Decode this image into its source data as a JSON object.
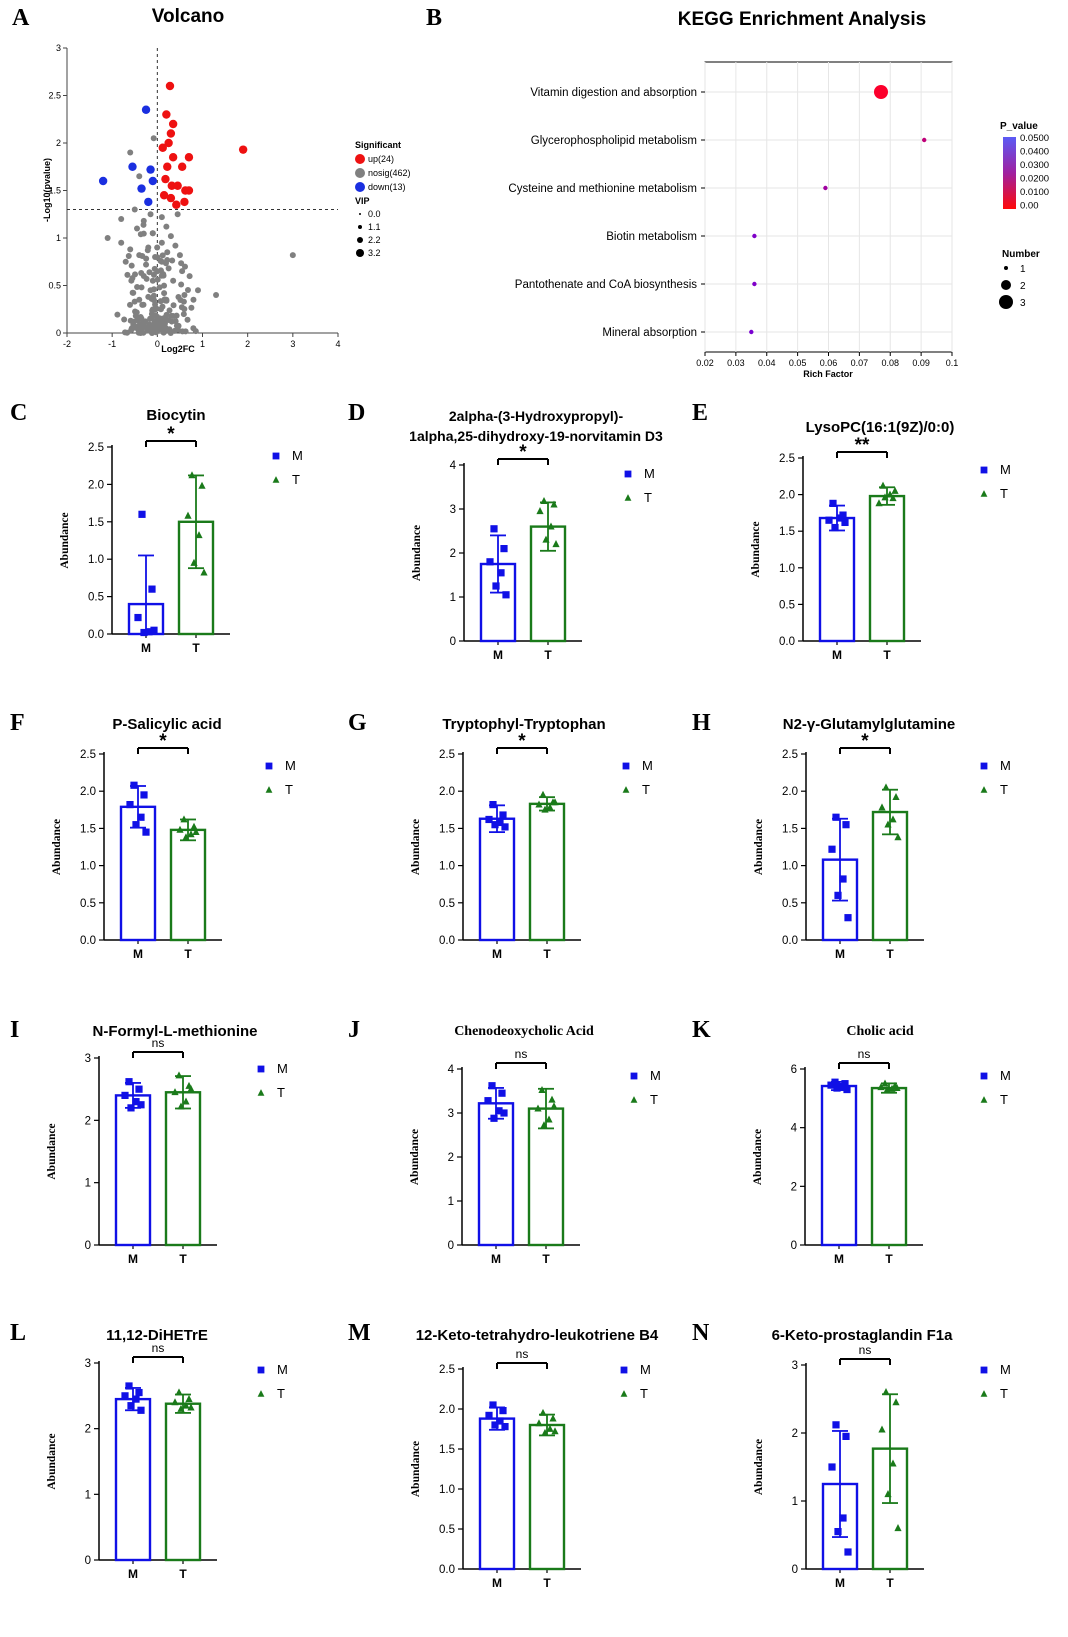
{
  "colors": {
    "M": "#1010e6",
    "T": "#1a7a1a",
    "up": "#ee1111",
    "nosig": "#808080",
    "down": "#1a2fe0",
    "axis": "#000000"
  },
  "chart_data": [
    {
      "panel": "A",
      "type": "scatter",
      "title": "Volcano",
      "xlabel": "Log2FC",
      "ylabel": "-Log10(pvalue)",
      "xlim": [
        -2,
        4
      ],
      "ylim": [
        0,
        3
      ],
      "xticks": [
        "-2",
        "-1",
        "0",
        "1",
        "2",
        "3",
        "4"
      ],
      "yticks": [
        "0",
        "0.5",
        "1",
        "1.5",
        "2",
        "2.5",
        "3"
      ],
      "threshold_y": 1.3,
      "legend": {
        "significant_title": "Significant",
        "significant": [
          "up(24)",
          "nosig(462)",
          "down(13)"
        ],
        "vip_title": "VIP",
        "vip": [
          "0.0",
          "1.1",
          "2.2",
          "3.2"
        ]
      },
      "series": [
        {
          "name": "up",
          "points": [
            [
              0.28,
              2.6
            ],
            [
              0.2,
              2.3
            ],
            [
              0.35,
              2.2
            ],
            [
              0.3,
              2.1
            ],
            [
              0.25,
              2.0
            ],
            [
              0.12,
              1.95
            ],
            [
              0.35,
              1.85
            ],
            [
              0.7,
              1.85
            ],
            [
              1.9,
              1.93
            ],
            [
              0.22,
              1.75
            ],
            [
              0.55,
              1.75
            ],
            [
              0.18,
              1.62
            ],
            [
              0.32,
              1.55
            ],
            [
              0.45,
              1.55
            ],
            [
              0.62,
              1.5
            ],
            [
              0.7,
              1.5
            ],
            [
              0.15,
              1.45
            ],
            [
              0.3,
              1.42
            ],
            [
              0.6,
              1.38
            ],
            [
              0.42,
              1.35
            ]
          ]
        },
        {
          "name": "down",
          "points": [
            [
              -0.25,
              2.35
            ],
            [
              -1.2,
              1.6
            ],
            [
              -0.55,
              1.75
            ],
            [
              -0.15,
              1.72
            ],
            [
              -0.35,
              1.52
            ],
            [
              -0.1,
              1.6
            ],
            [
              -0.2,
              1.38
            ]
          ]
        },
        {
          "name": "nosig",
          "points": [
            [
              -0.6,
              1.9
            ],
            [
              -0.4,
              1.65
            ],
            [
              -0.08,
              2.05
            ],
            [
              -0.15,
              1.25
            ],
            [
              -0.3,
              1.18
            ],
            [
              -0.45,
              1.1
            ],
            [
              -1.1,
              1.0
            ],
            [
              -0.8,
              0.95
            ],
            [
              -0.6,
              0.88
            ],
            [
              -0.7,
              0.75
            ],
            [
              -0.4,
              0.82
            ],
            [
              -0.2,
              0.9
            ],
            [
              -0.1,
              1.05
            ],
            [
              0.1,
              1.22
            ],
            [
              0.2,
              1.12
            ],
            [
              0.3,
              1.02
            ],
            [
              0.4,
              0.92
            ],
            [
              0.5,
              0.82
            ],
            [
              0.1,
              0.75
            ],
            [
              0.25,
              0.68
            ],
            [
              -0.3,
              0.6
            ],
            [
              -0.1,
              0.55
            ],
            [
              0.05,
              0.48
            ],
            [
              0.15,
              0.42
            ],
            [
              -0.2,
              0.38
            ],
            [
              -0.05,
              0.3
            ],
            [
              0.08,
              0.25
            ],
            [
              -0.12,
              0.2
            ],
            [
              0.02,
              0.15
            ],
            [
              -0.05,
              0.1
            ],
            [
              0.05,
              0.05
            ],
            [
              0.12,
              0.62
            ],
            [
              -0.25,
              0.72
            ],
            [
              0.35,
              0.55
            ],
            [
              -0.35,
              0.48
            ],
            [
              0.2,
              0.35
            ],
            [
              -0.15,
              0.45
            ],
            [
              0.0,
              0.65
            ],
            [
              0.22,
              0.85
            ],
            [
              -0.05,
              0.8
            ],
            [
              3.0,
              0.82
            ],
            [
              1.3,
              0.4
            ],
            [
              0.9,
              0.45
            ],
            [
              0.8,
              0.35
            ],
            [
              0.6,
              0.4
            ],
            [
              -0.5,
              1.3
            ],
            [
              0.45,
              1.25
            ],
            [
              -0.8,
              1.2
            ],
            [
              0.1,
              0.95
            ],
            [
              -0.4,
              0.35
            ]
          ]
        }
      ]
    },
    {
      "panel": "B",
      "type": "scatter",
      "title": "KEGG Enrichment Analysis",
      "xlabel": "Rich Factor",
      "xlim": [
        0.02,
        0.1
      ],
      "xticks": [
        "0.02",
        "0.03",
        "0.04",
        "0.05",
        "0.06",
        "0.07",
        "0.08",
        "0.09",
        "0.1"
      ],
      "legend": {
        "p_title": "P_value",
        "p_ticks": [
          "0.0500",
          "0.0400",
          "0.0300",
          "0.0200",
          "0.0100",
          "0.00"
        ],
        "number_title": "Number",
        "numbers": [
          "1",
          "2",
          "3"
        ]
      },
      "pathways": [
        {
          "name": "Vitamin digestion and absorption",
          "rich_factor": 0.077,
          "number": 3,
          "p_value": 0.001
        },
        {
          "name": "Glycerophospholipid metabolism",
          "rich_factor": 0.091,
          "number": 1,
          "p_value": 0.02
        },
        {
          "name": "Cysteine and methionine metabolism",
          "rich_factor": 0.059,
          "number": 1,
          "p_value": 0.03
        },
        {
          "name": "Biotin metabolism",
          "rich_factor": 0.036,
          "number": 1,
          "p_value": 0.04
        },
        {
          "name": "Pantothenate and CoA biosynthesis",
          "rich_factor": 0.036,
          "number": 1,
          "p_value": 0.04
        },
        {
          "name": "Mineral absorption",
          "rich_factor": 0.035,
          "number": 1,
          "p_value": 0.042
        }
      ]
    },
    {
      "panel": "C",
      "type": "bar",
      "title": "Biocytin",
      "ylabel": "Abundance",
      "categories": [
        "M",
        "T"
      ],
      "ylim": [
        0,
        2.5
      ],
      "yticks": [
        "0.0",
        "0.5",
        "1.0",
        "1.5",
        "2.0",
        "2.5"
      ],
      "values": [
        0.4,
        1.5
      ],
      "errors": [
        0.65,
        0.62
      ],
      "points": [
        [
          1.6,
          0.6,
          0.22,
          0.03,
          0.02,
          0.05
        ],
        [
          2.12,
          1.98,
          1.58,
          1.32,
          0.95,
          0.82
        ]
      ],
      "sig": "*"
    },
    {
      "panel": "D",
      "type": "bar",
      "title": [
        "2alpha-(3-Hydroxypropyl)-",
        "1alpha,25-dihydroxy-19-norvitamin D3"
      ],
      "ylabel": "Abundance",
      "categories": [
        "M",
        "T"
      ],
      "ylim": [
        0,
        4
      ],
      "yticks": [
        "0",
        "1",
        "2",
        "3",
        "4"
      ],
      "values": [
        1.75,
        2.6
      ],
      "errors": [
        0.65,
        0.55
      ],
      "points": [
        [
          2.55,
          2.1,
          1.8,
          1.55,
          1.25,
          1.05
        ],
        [
          3.18,
          3.1,
          2.95,
          2.6,
          2.3,
          2.2
        ]
      ],
      "sig": "*"
    },
    {
      "panel": "E",
      "type": "bar",
      "title": "LysoPC(16:1(9Z)/0:0)",
      "ylabel": "Abundance",
      "categories": [
        "M",
        "T"
      ],
      "ylim": [
        0,
        2.5
      ],
      "yticks": [
        "0.0",
        "0.5",
        "1.0",
        "1.5",
        "2.0",
        "2.5"
      ],
      "values": [
        1.68,
        1.98
      ],
      "errors": [
        0.17,
        0.12
      ],
      "points": [
        [
          1.88,
          1.72,
          1.65,
          1.68,
          1.55,
          1.62
        ],
        [
          2.12,
          1.95,
          1.88,
          2.0,
          1.96,
          2.05
        ]
      ],
      "sig": "**"
    },
    {
      "panel": "F",
      "type": "bar",
      "title": "P-Salicylic acid",
      "ylabel": "Abundance",
      "categories": [
        "M",
        "T"
      ],
      "ylim": [
        0,
        2.5
      ],
      "yticks": [
        "0.0",
        "0.5",
        "1.0",
        "1.5",
        "2.0",
        "2.5"
      ],
      "values": [
        1.79,
        1.48
      ],
      "errors": [
        0.28,
        0.14
      ],
      "points": [
        [
          2.08,
          1.95,
          1.82,
          1.65,
          1.55,
          1.45
        ],
        [
          1.62,
          1.52,
          1.48,
          1.42,
          1.38,
          1.45
        ]
      ],
      "sig": "*"
    },
    {
      "panel": "G",
      "type": "bar",
      "title": "Tryptophyl-Tryptophan",
      "ylabel": "Abundance",
      "categories": [
        "M",
        "T"
      ],
      "ylim": [
        0,
        2.5
      ],
      "yticks": [
        "0.0",
        "0.5",
        "1.0",
        "1.5",
        "2.0",
        "2.5"
      ],
      "values": [
        1.63,
        1.83
      ],
      "errors": [
        0.18,
        0.09
      ],
      "points": [
        [
          1.82,
          1.68,
          1.62,
          1.58,
          1.55,
          1.52
        ],
        [
          1.95,
          1.85,
          1.82,
          1.78,
          1.75,
          1.85
        ]
      ],
      "sig": "*"
    },
    {
      "panel": "H",
      "type": "bar",
      "title": "N2-γ-Glutamylglutamine",
      "ylabel": "Abundance",
      "categories": [
        "M",
        "T"
      ],
      "ylim": [
        0,
        2.5
      ],
      "yticks": [
        "0.0",
        "0.5",
        "1.0",
        "1.5",
        "2.0",
        "2.5"
      ],
      "values": [
        1.08,
        1.72
      ],
      "errors": [
        0.55,
        0.3
      ],
      "points": [
        [
          1.65,
          1.55,
          1.22,
          0.82,
          0.6,
          0.3
        ],
        [
          2.05,
          1.92,
          1.78,
          1.62,
          1.55,
          1.38
        ]
      ],
      "sig": "*"
    },
    {
      "panel": "I",
      "type": "bar",
      "title": "N-Formyl-L-methionine",
      "ylabel": "Abundance",
      "categories": [
        "M",
        "T"
      ],
      "ylim": [
        0,
        3
      ],
      "yticks": [
        "0",
        "1",
        "2",
        "3"
      ],
      "values": [
        2.4,
        2.45
      ],
      "errors": [
        0.2,
        0.26
      ],
      "points": [
        [
          2.62,
          2.5,
          2.4,
          2.3,
          2.2,
          2.25
        ],
        [
          2.72,
          2.55,
          2.45,
          2.3,
          2.22,
          2.5
        ]
      ],
      "sig": "ns"
    },
    {
      "panel": "J",
      "type": "bar",
      "title": "Chenodeoxycholic Acid",
      "ylabel": "Abundance",
      "categories": [
        "M",
        "T"
      ],
      "ylim": [
        0,
        4
      ],
      "yticks": [
        "0",
        "1",
        "2",
        "3",
        "4"
      ],
      "values": [
        3.22,
        3.1
      ],
      "errors": [
        0.35,
        0.45
      ],
      "points": [
        [
          3.62,
          3.45,
          3.28,
          3.05,
          2.88,
          3.0
        ],
        [
          3.52,
          3.3,
          3.1,
          2.85,
          2.72,
          3.15
        ]
      ],
      "sig": "ns"
    },
    {
      "panel": "K",
      "type": "bar",
      "title": "Cholic acid",
      "ylabel": "Abundance",
      "categories": [
        "M",
        "T"
      ],
      "ylim": [
        0,
        6
      ],
      "yticks": [
        "0",
        "2",
        "4",
        "6"
      ],
      "values": [
        5.42,
        5.35
      ],
      "errors": [
        0.14,
        0.16
      ],
      "points": [
        [
          5.55,
          5.5,
          5.45,
          5.4,
          5.35,
          5.3
        ],
        [
          5.5,
          5.42,
          5.38,
          5.32,
          5.28,
          5.35
        ]
      ],
      "sig": "ns"
    },
    {
      "panel": "L",
      "type": "bar",
      "title": "11,12-DiHETrE",
      "ylabel": "Abundance",
      "categories": [
        "M",
        "T"
      ],
      "ylim": [
        0,
        3
      ],
      "yticks": [
        "0",
        "1",
        "2",
        "3"
      ],
      "values": [
        2.45,
        2.38
      ],
      "errors": [
        0.17,
        0.14
      ],
      "points": [
        [
          2.65,
          2.55,
          2.5,
          2.45,
          2.35,
          2.28
        ],
        [
          2.55,
          2.45,
          2.4,
          2.35,
          2.3,
          2.32
        ]
      ],
      "sig": "ns"
    },
    {
      "panel": "M",
      "type": "bar",
      "title": "12-Keto-tetrahydro-leukotriene B4",
      "ylabel": "Abundance",
      "categories": [
        "M",
        "T"
      ],
      "ylim": [
        0,
        2.5
      ],
      "yticks": [
        "0.0",
        "0.5",
        "1.0",
        "1.5",
        "2.0",
        "2.5"
      ],
      "values": [
        1.88,
        1.8
      ],
      "errors": [
        0.14,
        0.13
      ],
      "points": [
        [
          2.05,
          1.98,
          1.92,
          1.85,
          1.8,
          1.78
        ],
        [
          1.95,
          1.88,
          1.82,
          1.75,
          1.7,
          1.72
        ]
      ],
      "sig": "ns"
    },
    {
      "panel": "N",
      "type": "bar",
      "title": "6-Keto-prostaglandin F1a",
      "ylabel": "Abundance",
      "categories": [
        "M",
        "T"
      ],
      "ylim": [
        0,
        3
      ],
      "yticks": [
        "0",
        "1",
        "2",
        "3"
      ],
      "values": [
        1.25,
        1.77
      ],
      "errors": [
        0.78,
        0.8
      ],
      "points": [
        [
          2.12,
          1.95,
          1.5,
          0.75,
          0.55,
          0.25
        ],
        [
          2.6,
          2.45,
          2.05,
          1.55,
          1.1,
          0.6
        ]
      ],
      "sig": "ns"
    }
  ]
}
